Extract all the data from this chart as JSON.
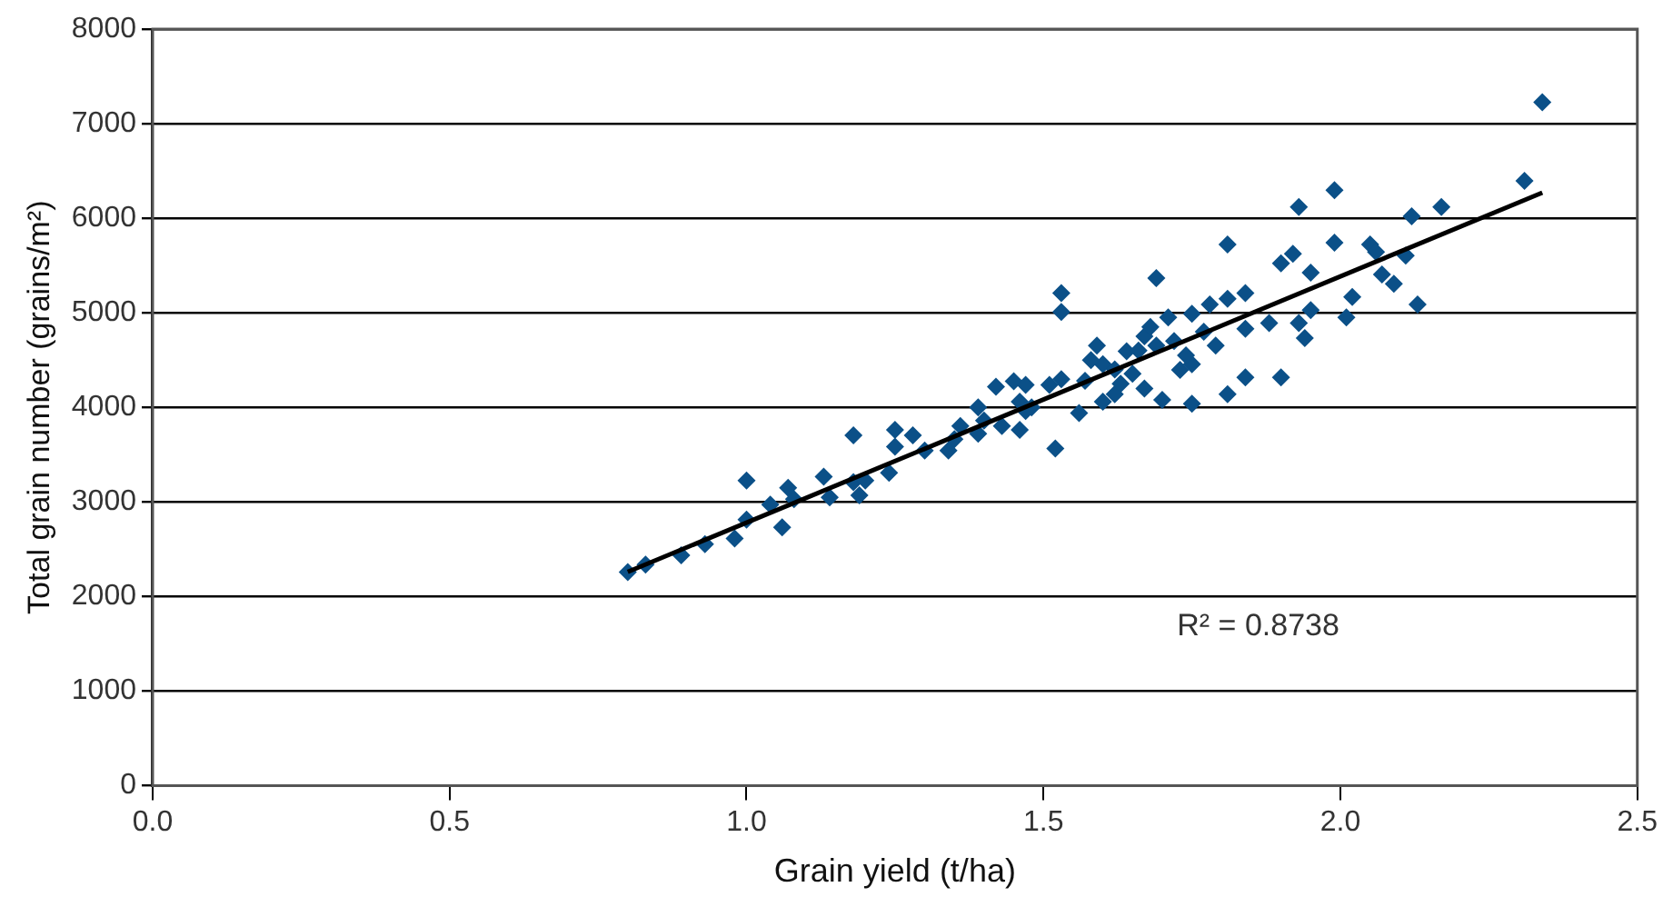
{
  "chart_data": {
    "type": "scatter",
    "xlabel": "Grain yield (t/ha)",
    "ylabel": "Total grain number (grains/m²)",
    "xlim": [
      0,
      2.5
    ],
    "xticks": [
      {
        "value": 0,
        "label": "0.0"
      },
      0.5,
      {
        "value": 1,
        "label": "1.0"
      },
      1.5,
      {
        "value": 2,
        "label": "2.0"
      },
      2.5
    ],
    "ylim": [
      0,
      8000
    ],
    "yticks": [
      0,
      1000,
      2000,
      3000,
      4000,
      5000,
      6000,
      7000,
      8000
    ],
    "grid": "y",
    "legend": false,
    "annotations": [
      "R² = 0.8738"
    ],
    "series": [
      {
        "marker": "diamond",
        "color": "#0b5088",
        "x": [
          0.8,
          0.83,
          0.89,
          0.93,
          0.98,
          1.0,
          1.0,
          1.04,
          1.06,
          1.07,
          1.08,
          1.13,
          1.14,
          1.18,
          1.18,
          1.19,
          1.2,
          1.24,
          1.25,
          1.25,
          1.28,
          1.3,
          1.34,
          1.35,
          1.36,
          1.39,
          1.39,
          1.4,
          1.42,
          1.43,
          1.45,
          1.46,
          1.46,
          1.48,
          1.51,
          1.52,
          1.53,
          1.47,
          1.47,
          1.53,
          1.53,
          1.56,
          1.59,
          1.6,
          1.6,
          1.62,
          1.64,
          1.67,
          1.67,
          1.65,
          1.69,
          1.69,
          1.7,
          1.71,
          1.73,
          1.75,
          1.75,
          1.75,
          1.78,
          1.79,
          1.81,
          1.81,
          1.81,
          1.84,
          1.84,
          1.84,
          1.88,
          1.9,
          1.9,
          1.92,
          1.93,
          1.93,
          1.94,
          1.95,
          1.95,
          1.99,
          1.99,
          2.01,
          2.02,
          2.05,
          2.06,
          2.07,
          2.09,
          2.11,
          2.12,
          2.13,
          2.17,
          2.31,
          2.34,
          1.57,
          1.58,
          1.62,
          1.66,
          1.68,
          1.72,
          1.74,
          1.77,
          1.63
        ],
        "values": [
          2257,
          2336,
          2435,
          2554,
          2614,
          3227,
          2812,
          2970,
          2732,
          3148,
          3029,
          3267,
          3049,
          3703,
          3208,
          3069,
          3227,
          3307,
          3762,
          3584,
          3703,
          3544,
          3544,
          3663,
          3802,
          3722,
          4000,
          3861,
          4217,
          3802,
          4277,
          3762,
          4059,
          4000,
          4237,
          3564,
          4297,
          4237,
          3960,
          5207,
          5009,
          3940,
          4653,
          4455,
          4059,
          4138,
          4594,
          4752,
          4198,
          4356,
          5366,
          4653,
          4079,
          4950,
          4396,
          4990,
          4455,
          4039,
          5089,
          4653,
          5148,
          4138,
          5722,
          5207,
          4316,
          4831,
          4891,
          5524,
          4316,
          5623,
          6118,
          4891,
          4732,
          5425,
          5029,
          6296,
          5742,
          4950,
          5168,
          5722,
          5643,
          5405,
          5306,
          5604,
          6019,
          5089,
          6118,
          6395,
          7227,
          4280,
          4500,
          4400,
          4600,
          4850,
          4700,
          4550,
          4800,
          4250
        ]
      },
      {
        "type": "line",
        "marker": "none",
        "color": "#000000",
        "x": [
          0.8,
          2.34
        ],
        "values": [
          2260,
          6270
        ]
      }
    ]
  }
}
